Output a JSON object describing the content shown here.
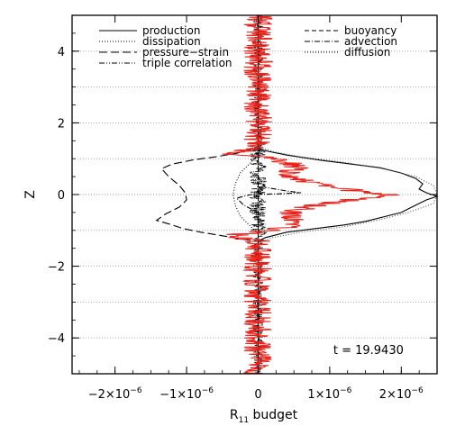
{
  "chart_data": {
    "type": "line",
    "title": "",
    "xlabel": "R11 budget",
    "xlabel_main": "R",
    "xlabel_sub": "11",
    "xlabel_rest": " budget",
    "ylabel": "Z",
    "xlim": [
      -2.6e-06,
      2.5e-06
    ],
    "ylim": [
      -5,
      5
    ],
    "x_ticks": [
      {
        "value": -2e-06,
        "label": "−2×10",
        "exp": "−6"
      },
      {
        "value": -1e-06,
        "label": "−1×10",
        "exp": "−6"
      },
      {
        "value": 0,
        "label": "0",
        "exp": ""
      },
      {
        "value": 1e-06,
        "label": "1×10",
        "exp": "−6"
      },
      {
        "value": 2e-06,
        "label": "2×10",
        "exp": "−6"
      }
    ],
    "y_ticks": [
      {
        "value": -4,
        "label": "−4"
      },
      {
        "value": -2,
        "label": "−2"
      },
      {
        "value": 0,
        "label": "0"
      },
      {
        "value": 2,
        "label": "2"
      },
      {
        "value": 4,
        "label": "4"
      }
    ],
    "grid_y": [
      -4,
      -3,
      -2,
      -1,
      0,
      1,
      2,
      3,
      4
    ],
    "annotation": "t = 19.9430",
    "legend": [
      {
        "name": "production",
        "style": "solid",
        "column": 0,
        "row": 0
      },
      {
        "name": "dissipation",
        "style": "dotted",
        "column": 0,
        "row": 1
      },
      {
        "name": "pressure−strain",
        "style": "longdash",
        "column": 0,
        "row": 2
      },
      {
        "name": "triple correlation",
        "style": "dashdotdot",
        "column": 0,
        "row": 3
      },
      {
        "name": "buoyancy",
        "style": "dashed",
        "column": 1,
        "row": 0
      },
      {
        "name": "advection",
        "style": "dashdot",
        "column": 1,
        "row": 1
      },
      {
        "name": "diffusion",
        "style": "fine-dotted",
        "column": 1,
        "row": 2
      }
    ],
    "series": [
      {
        "name": "production",
        "color": "#000000",
        "style": "solid",
        "points": [
          [
            0,
            -5
          ],
          [
            0,
            -1.3
          ],
          [
            1e-07,
            -1.2
          ],
          [
            4e-07,
            -1.05
          ],
          [
            8e-07,
            -0.95
          ],
          [
            1.2e-06,
            -0.85
          ],
          [
            1.5e-06,
            -0.75
          ],
          [
            1.8e-06,
            -0.6
          ],
          [
            2e-06,
            -0.5
          ],
          [
            2.2e-06,
            -0.3
          ],
          [
            2.35e-06,
            -0.15
          ],
          [
            2.5e-06,
            -0.05
          ],
          [
            2.35e-06,
            0.05
          ],
          [
            2.25e-06,
            0.15
          ],
          [
            2.3e-06,
            0.3
          ],
          [
            2.2e-06,
            0.45
          ],
          [
            2e-06,
            0.6
          ],
          [
            1.7e-06,
            0.75
          ],
          [
            1.3e-06,
            0.85
          ],
          [
            9e-07,
            0.95
          ],
          [
            4e-07,
            1.1
          ],
          [
            1e-07,
            1.22
          ],
          [
            0,
            1.3
          ],
          [
            0,
            5
          ]
        ]
      },
      {
        "name": "diffusion",
        "color": "#555555",
        "style": "fine-dotted",
        "points": [
          [
            0,
            -5
          ],
          [
            0,
            -1.35
          ],
          [
            2e-07,
            -1.2
          ],
          [
            6e-07,
            -1.05
          ],
          [
            1.2e-06,
            -0.9
          ],
          [
            1.7e-06,
            -0.7
          ],
          [
            2.1e-06,
            -0.5
          ],
          [
            2.45e-06,
            -0.25
          ],
          [
            2.5e-06,
            0
          ],
          [
            2.45e-06,
            0.25
          ],
          [
            2.2e-06,
            0.5
          ],
          [
            1.8e-06,
            0.7
          ],
          [
            1.2e-06,
            0.9
          ],
          [
            6e-07,
            1.05
          ],
          [
            2e-07,
            1.2
          ],
          [
            0,
            1.35
          ],
          [
            0,
            5
          ]
        ]
      },
      {
        "name": "pressure−strain",
        "color": "#000000",
        "style": "longdash",
        "points": [
          [
            0,
            -5
          ],
          [
            0,
            -1.3
          ],
          [
            -2e-07,
            -1.25
          ],
          [
            -5e-07,
            -1.15
          ],
          [
            -8e-07,
            -1.05
          ],
          [
            -1.05e-06,
            -0.95
          ],
          [
            -1.2e-06,
            -0.85
          ],
          [
            -1.42e-06,
            -0.72
          ],
          [
            -1.3e-06,
            -0.55
          ],
          [
            -1.1e-06,
            -0.35
          ],
          [
            -1e-06,
            -0.15
          ],
          [
            -1.02e-06,
            0.05
          ],
          [
            -1.1e-06,
            0.25
          ],
          [
            -1.25e-06,
            0.5
          ],
          [
            -1.35e-06,
            0.72
          ],
          [
            -1.2e-06,
            0.85
          ],
          [
            -9e-07,
            0.97
          ],
          [
            -6e-07,
            1.05
          ],
          [
            -3e-07,
            1.15
          ],
          [
            -1e-07,
            1.25
          ],
          [
            0,
            1.3
          ],
          [
            0,
            5
          ]
        ]
      },
      {
        "name": "dissipation",
        "color": "#000000",
        "style": "dotted",
        "points": [
          [
            0,
            -5
          ],
          [
            0,
            -1.1
          ],
          [
            -1e-07,
            -0.9
          ],
          [
            -2.5e-07,
            -0.6
          ],
          [
            -3.2e-07,
            -0.3
          ],
          [
            -3.5e-07,
            0
          ],
          [
            -3.2e-07,
            0.3
          ],
          [
            -2.5e-07,
            0.6
          ],
          [
            -1e-07,
            0.9
          ],
          [
            0,
            1.1
          ],
          [
            0,
            5
          ]
        ]
      },
      {
        "name": "advection",
        "color": "#000000",
        "style": "dashdot",
        "points": [
          [
            0,
            -5
          ],
          [
            0,
            -0.5
          ],
          [
            -2e-07,
            -0.3
          ],
          [
            -3e-07,
            -0.1
          ],
          [
            -1e-07,
            0
          ],
          [
            3e-07,
            0.02
          ],
          [
            6e-07,
            0.05
          ],
          [
            4e-07,
            0.1
          ],
          [
            1e-07,
            0.2
          ],
          [
            0,
            0.5
          ],
          [
            0,
            5
          ]
        ]
      },
      {
        "name": "buoyancy",
        "color": "#000000",
        "style": "dashed",
        "points": [
          [
            0,
            -5
          ],
          [
            0,
            5
          ]
        ]
      }
    ],
    "noisy_series": [
      {
        "name": "production (red)",
        "color": "#e8201a",
        "envelope": [
          [
            -5,
            0
          ],
          [
            -4.5,
            0
          ],
          [
            -1.3,
            0
          ],
          [
            -1.15,
            -4e-07
          ],
          [
            -1.0,
            2e-07
          ],
          [
            -0.9,
            4e-07
          ],
          [
            -0.75,
            5e-07
          ],
          [
            -0.6,
            4.5e-07
          ],
          [
            -0.5,
            5e-07
          ],
          [
            -0.4,
            6e-07
          ],
          [
            -0.3,
            8e-07
          ],
          [
            -0.2,
            1.1e-06
          ],
          [
            -0.1,
            1.5e-06
          ],
          [
            0,
            1.85e-06
          ],
          [
            0.1,
            1.4e-06
          ],
          [
            0.2,
            1e-06
          ],
          [
            0.3,
            8e-07
          ],
          [
            0.4,
            6e-07
          ],
          [
            0.5,
            5e-07
          ],
          [
            0.6,
            4.5e-07
          ],
          [
            0.75,
            5e-07
          ],
          [
            0.9,
            4e-07
          ],
          [
            1.0,
            2e-07
          ],
          [
            1.15,
            -4e-07
          ],
          [
            1.3,
            0
          ],
          [
            4.5,
            0
          ],
          [
            5,
            0
          ]
        ],
        "noise_amplitude": 2e-07
      },
      {
        "name": "triple correlation",
        "color": "#000000",
        "envelope": [
          [
            -5,
            0
          ],
          [
            -1.4,
            0
          ],
          [
            -1.0,
            0
          ],
          [
            0,
            0
          ],
          [
            1.0,
            0
          ],
          [
            1.4,
            0
          ],
          [
            5,
            0
          ]
        ],
        "noise_amplitude": 1.2e-07
      }
    ]
  }
}
